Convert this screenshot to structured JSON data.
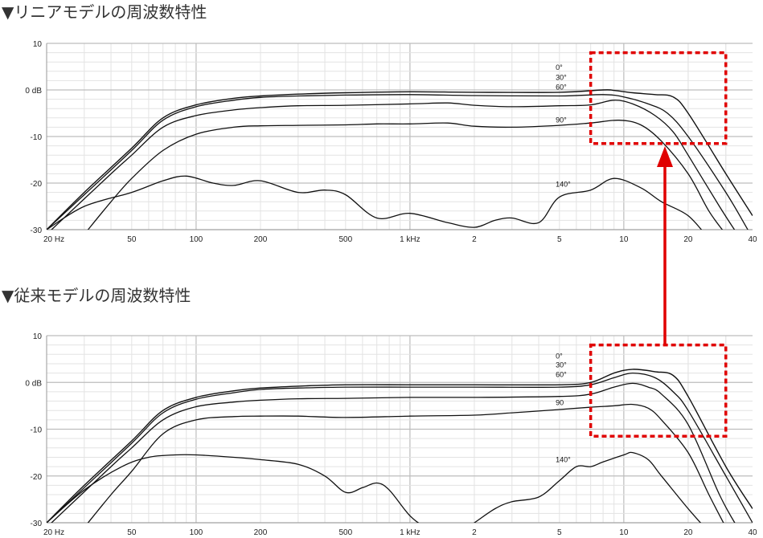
{
  "titles": {
    "top": "▼リニアモデルの周波数特性",
    "bottom": "▼従来モデルの周波数特性"
  },
  "colors": {
    "curve": "#111111",
    "grid_major": "#bdbdbd",
    "grid_minor": "#e3e3e3",
    "highlight": "#e00000",
    "arrow": "#e00000"
  },
  "chart_data": [
    {
      "type": "line",
      "title": "▼リニアモデルの周波数特性",
      "x_scale": "log",
      "xlim": [
        20,
        40000
      ],
      "ylim": [
        -30,
        10
      ],
      "x_tick_values": [
        20,
        50,
        100,
        200,
        500,
        1000,
        2000,
        5000,
        10000,
        20000,
        40000
      ],
      "x_tick_labels": [
        "20 Hz",
        "50",
        "100",
        "200",
        "500",
        "1 kHz",
        "2",
        "5",
        "10",
        "20",
        "40"
      ],
      "y_tick_values": [
        10,
        0,
        -10,
        -20,
        -30
      ],
      "y_tick_labels": [
        "10",
        "0 dB",
        "-10",
        "-20",
        "-30"
      ],
      "highlight": {
        "x": [
          7000,
          30000
        ],
        "y": [
          -11.5,
          8
        ]
      },
      "series": [
        {
          "name": "0°",
          "label_at": [
            4800,
            4.8
          ],
          "points": [
            [
              20,
              -30
            ],
            [
              30,
              -22
            ],
            [
              50,
              -12.5
            ],
            [
              70,
              -6
            ],
            [
              100,
              -3.2
            ],
            [
              150,
              -1.8
            ],
            [
              200,
              -1.3
            ],
            [
              300,
              -0.9
            ],
            [
              500,
              -0.6
            ],
            [
              1000,
              -0.4
            ],
            [
              2000,
              -0.5
            ],
            [
              5000,
              -0.5
            ],
            [
              8000,
              0
            ],
            [
              9000,
              -0.1
            ],
            [
              11000,
              -0.6
            ],
            [
              14000,
              -1
            ],
            [
              17000,
              -1.5
            ],
            [
              20000,
              -5
            ],
            [
              30000,
              -18
            ],
            [
              40000,
              -27
            ]
          ]
        },
        {
          "name": "30°",
          "label_at": [
            4800,
            2.7
          ],
          "points": [
            [
              20,
              -30
            ],
            [
              30,
              -22.5
            ],
            [
              50,
              -13
            ],
            [
              70,
              -6.5
            ],
            [
              100,
              -3.6
            ],
            [
              150,
              -2.2
            ],
            [
              200,
              -1.6
            ],
            [
              300,
              -1.3
            ],
            [
              500,
              -1.1
            ],
            [
              1000,
              -1
            ],
            [
              2000,
              -1.2
            ],
            [
              5000,
              -1.3
            ],
            [
              8000,
              -1
            ],
            [
              10000,
              -1.5
            ],
            [
              13000,
              -3
            ],
            [
              16000,
              -5
            ],
            [
              20000,
              -10
            ],
            [
              30000,
              -22
            ],
            [
              38000,
              -30
            ]
          ]
        },
        {
          "name": "60°",
          "label_at": [
            4800,
            0.6
          ],
          "points": [
            [
              20,
              -31
            ],
            [
              40,
              -18
            ],
            [
              50,
              -14
            ],
            [
              70,
              -8
            ],
            [
              100,
              -5.5
            ],
            [
              150,
              -4.3
            ],
            [
              200,
              -3.8
            ],
            [
              300,
              -3.4
            ],
            [
              500,
              -3.3
            ],
            [
              1000,
              -3
            ],
            [
              1500,
              -2.8
            ],
            [
              2000,
              -3.3
            ],
            [
              3000,
              -3.6
            ],
            [
              5000,
              -3.4
            ],
            [
              7000,
              -3.2
            ],
            [
              9000,
              -2.2
            ],
            [
              11000,
              -3
            ],
            [
              14000,
              -5.5
            ],
            [
              17000,
              -9
            ],
            [
              20000,
              -14
            ],
            [
              28000,
              -25
            ],
            [
              34000,
              -31
            ]
          ]
        },
        {
          "name": "90°",
          "label_at": [
            4800,
            -6.5
          ],
          "points": [
            [
              30,
              -31
            ],
            [
              40,
              -24
            ],
            [
              50,
              -19
            ],
            [
              70,
              -13
            ],
            [
              100,
              -9.5
            ],
            [
              150,
              -8
            ],
            [
              200,
              -7.7
            ],
            [
              300,
              -7.6
            ],
            [
              500,
              -7.5
            ],
            [
              700,
              -7.3
            ],
            [
              1000,
              -7.3
            ],
            [
              1500,
              -7.1
            ],
            [
              2000,
              -7.8
            ],
            [
              3000,
              -8
            ],
            [
              5000,
              -7.6
            ],
            [
              7000,
              -7.1
            ],
            [
              9500,
              -6.5
            ],
            [
              12000,
              -7.5
            ],
            [
              15000,
              -11
            ],
            [
              20000,
              -18
            ],
            [
              25000,
              -26
            ],
            [
              30000,
              -31
            ]
          ]
        },
        {
          "name": "140°",
          "label_at": [
            4800,
            -20.3
          ],
          "points": [
            [
              20,
              -30
            ],
            [
              30,
              -25
            ],
            [
              50,
              -22
            ],
            [
              70,
              -19.5
            ],
            [
              90,
              -18.5
            ],
            [
              120,
              -20
            ],
            [
              150,
              -20.5
            ],
            [
              200,
              -19.5
            ],
            [
              300,
              -22
            ],
            [
              400,
              -21.5
            ],
            [
              500,
              -22.5
            ],
            [
              700,
              -27.5
            ],
            [
              1000,
              -26.5
            ],
            [
              1500,
              -28.5
            ],
            [
              2000,
              -29.5
            ],
            [
              2500,
              -28
            ],
            [
              3000,
              -27.5
            ],
            [
              4000,
              -28.5
            ],
            [
              5000,
              -23
            ],
            [
              7000,
              -21.5
            ],
            [
              9000,
              -19
            ],
            [
              12000,
              -21
            ],
            [
              15000,
              -24
            ],
            [
              20000,
              -27
            ],
            [
              25000,
              -32
            ]
          ]
        }
      ]
    },
    {
      "type": "line",
      "title": "▼従来モデルの周波数特性",
      "x_scale": "log",
      "xlim": [
        20,
        40000
      ],
      "ylim": [
        -30,
        10
      ],
      "x_tick_values": [
        20,
        50,
        100,
        200,
        500,
        1000,
        2000,
        5000,
        10000,
        20000,
        40000
      ],
      "x_tick_labels": [
        "20 Hz",
        "50",
        "100",
        "200",
        "500",
        "1 kHz",
        "2",
        "5",
        "10",
        "20",
        "40"
      ],
      "y_tick_values": [
        10,
        0,
        -10,
        -20,
        -30
      ],
      "y_tick_labels": [
        "10",
        "0 dB",
        "-10",
        "-20",
        "-30"
      ],
      "highlight": {
        "x": [
          7000,
          30000
        ],
        "y": [
          -11.5,
          8
        ]
      },
      "series": [
        {
          "name": "0°",
          "label_at": [
            4800,
            5.6
          ],
          "points": [
            [
              20,
              -30
            ],
            [
              30,
              -22
            ],
            [
              50,
              -12.5
            ],
            [
              70,
              -6
            ],
            [
              100,
              -3.2
            ],
            [
              150,
              -1.8
            ],
            [
              200,
              -1.2
            ],
            [
              300,
              -0.8
            ],
            [
              500,
              -0.5
            ],
            [
              1000,
              -0.5
            ],
            [
              2000,
              -0.5
            ],
            [
              5000,
              -0.5
            ],
            [
              7000,
              0
            ],
            [
              9000,
              2
            ],
            [
              11000,
              2.8
            ],
            [
              14000,
              2.3
            ],
            [
              17000,
              1.5
            ],
            [
              20000,
              -3
            ],
            [
              30000,
              -18
            ],
            [
              40000,
              -27
            ]
          ]
        },
        {
          "name": "30°",
          "label_at": [
            4800,
            3.7
          ],
          "points": [
            [
              20,
              -30
            ],
            [
              30,
              -22.5
            ],
            [
              50,
              -13
            ],
            [
              70,
              -6.5
            ],
            [
              100,
              -3.6
            ],
            [
              150,
              -2.2
            ],
            [
              200,
              -1.5
            ],
            [
              300,
              -1.2
            ],
            [
              500,
              -1
            ],
            [
              1000,
              -1
            ],
            [
              2000,
              -1
            ],
            [
              5000,
              -1
            ],
            [
              7000,
              -0.5
            ],
            [
              9000,
              1
            ],
            [
              11000,
              2
            ],
            [
              14000,
              1
            ],
            [
              17000,
              -2
            ],
            [
              20000,
              -6
            ],
            [
              30000,
              -20
            ],
            [
              40000,
              -30
            ]
          ]
        },
        {
          "name": "60°",
          "label_at": [
            4800,
            1.7
          ],
          "points": [
            [
              20,
              -31
            ],
            [
              40,
              -18
            ],
            [
              50,
              -14
            ],
            [
              70,
              -8
            ],
            [
              100,
              -5.2
            ],
            [
              150,
              -4.2
            ],
            [
              200,
              -3.8
            ],
            [
              300,
              -3.5
            ],
            [
              500,
              -3.4
            ],
            [
              1000,
              -3.2
            ],
            [
              2000,
              -3.2
            ],
            [
              5000,
              -3
            ],
            [
              7000,
              -2.5
            ],
            [
              9000,
              -1
            ],
            [
              11000,
              -0.2
            ],
            [
              13000,
              -1
            ],
            [
              15000,
              -2.5
            ],
            [
              20000,
              -9
            ],
            [
              28000,
              -24
            ],
            [
              34000,
              -31
            ]
          ]
        },
        {
          "name": "90",
          "label_at": [
            4800,
            -4.3
          ],
          "points": [
            [
              30,
              -31
            ],
            [
              40,
              -24
            ],
            [
              50,
              -19
            ],
            [
              70,
              -11
            ],
            [
              100,
              -8
            ],
            [
              150,
              -7.3
            ],
            [
              200,
              -7.2
            ],
            [
              300,
              -7.2
            ],
            [
              500,
              -7.5
            ],
            [
              1000,
              -7.2
            ],
            [
              2000,
              -7
            ],
            [
              3000,
              -6.5
            ],
            [
              5000,
              -5.8
            ],
            [
              7000,
              -5.3
            ],
            [
              9000,
              -5
            ],
            [
              11000,
              -4.7
            ],
            [
              13000,
              -5.5
            ],
            [
              15000,
              -8
            ],
            [
              20000,
              -15
            ],
            [
              25000,
              -24
            ],
            [
              30000,
              -31
            ]
          ]
        },
        {
          "name": "140°",
          "label_at": [
            4800,
            -16.5
          ],
          "points": [
            [
              20,
              -30
            ],
            [
              30,
              -23
            ],
            [
              45,
              -18
            ],
            [
              60,
              -16
            ],
            [
              80,
              -15.5
            ],
            [
              100,
              -15.5
            ],
            [
              150,
              -16
            ],
            [
              200,
              -16.5
            ],
            [
              300,
              -17.5
            ],
            [
              400,
              -20
            ],
            [
              500,
              -23.5
            ],
            [
              600,
              -22.5
            ],
            [
              700,
              -21.5
            ],
            [
              800,
              -23
            ],
            [
              1000,
              -28.5
            ],
            [
              1200,
              -31
            ],
            [
              1600,
              -33
            ],
            [
              2000,
              -30
            ],
            [
              2500,
              -27
            ],
            [
              3000,
              -25.5
            ],
            [
              4000,
              -24.5
            ],
            [
              5000,
              -21
            ],
            [
              6000,
              -18
            ],
            [
              7000,
              -18
            ],
            [
              8000,
              -17
            ],
            [
              10000,
              -15.5
            ],
            [
              11000,
              -15
            ],
            [
              13000,
              -16.5
            ],
            [
              15000,
              -20
            ],
            [
              20000,
              -27
            ],
            [
              25000,
              -32
            ]
          ]
        }
      ]
    }
  ]
}
